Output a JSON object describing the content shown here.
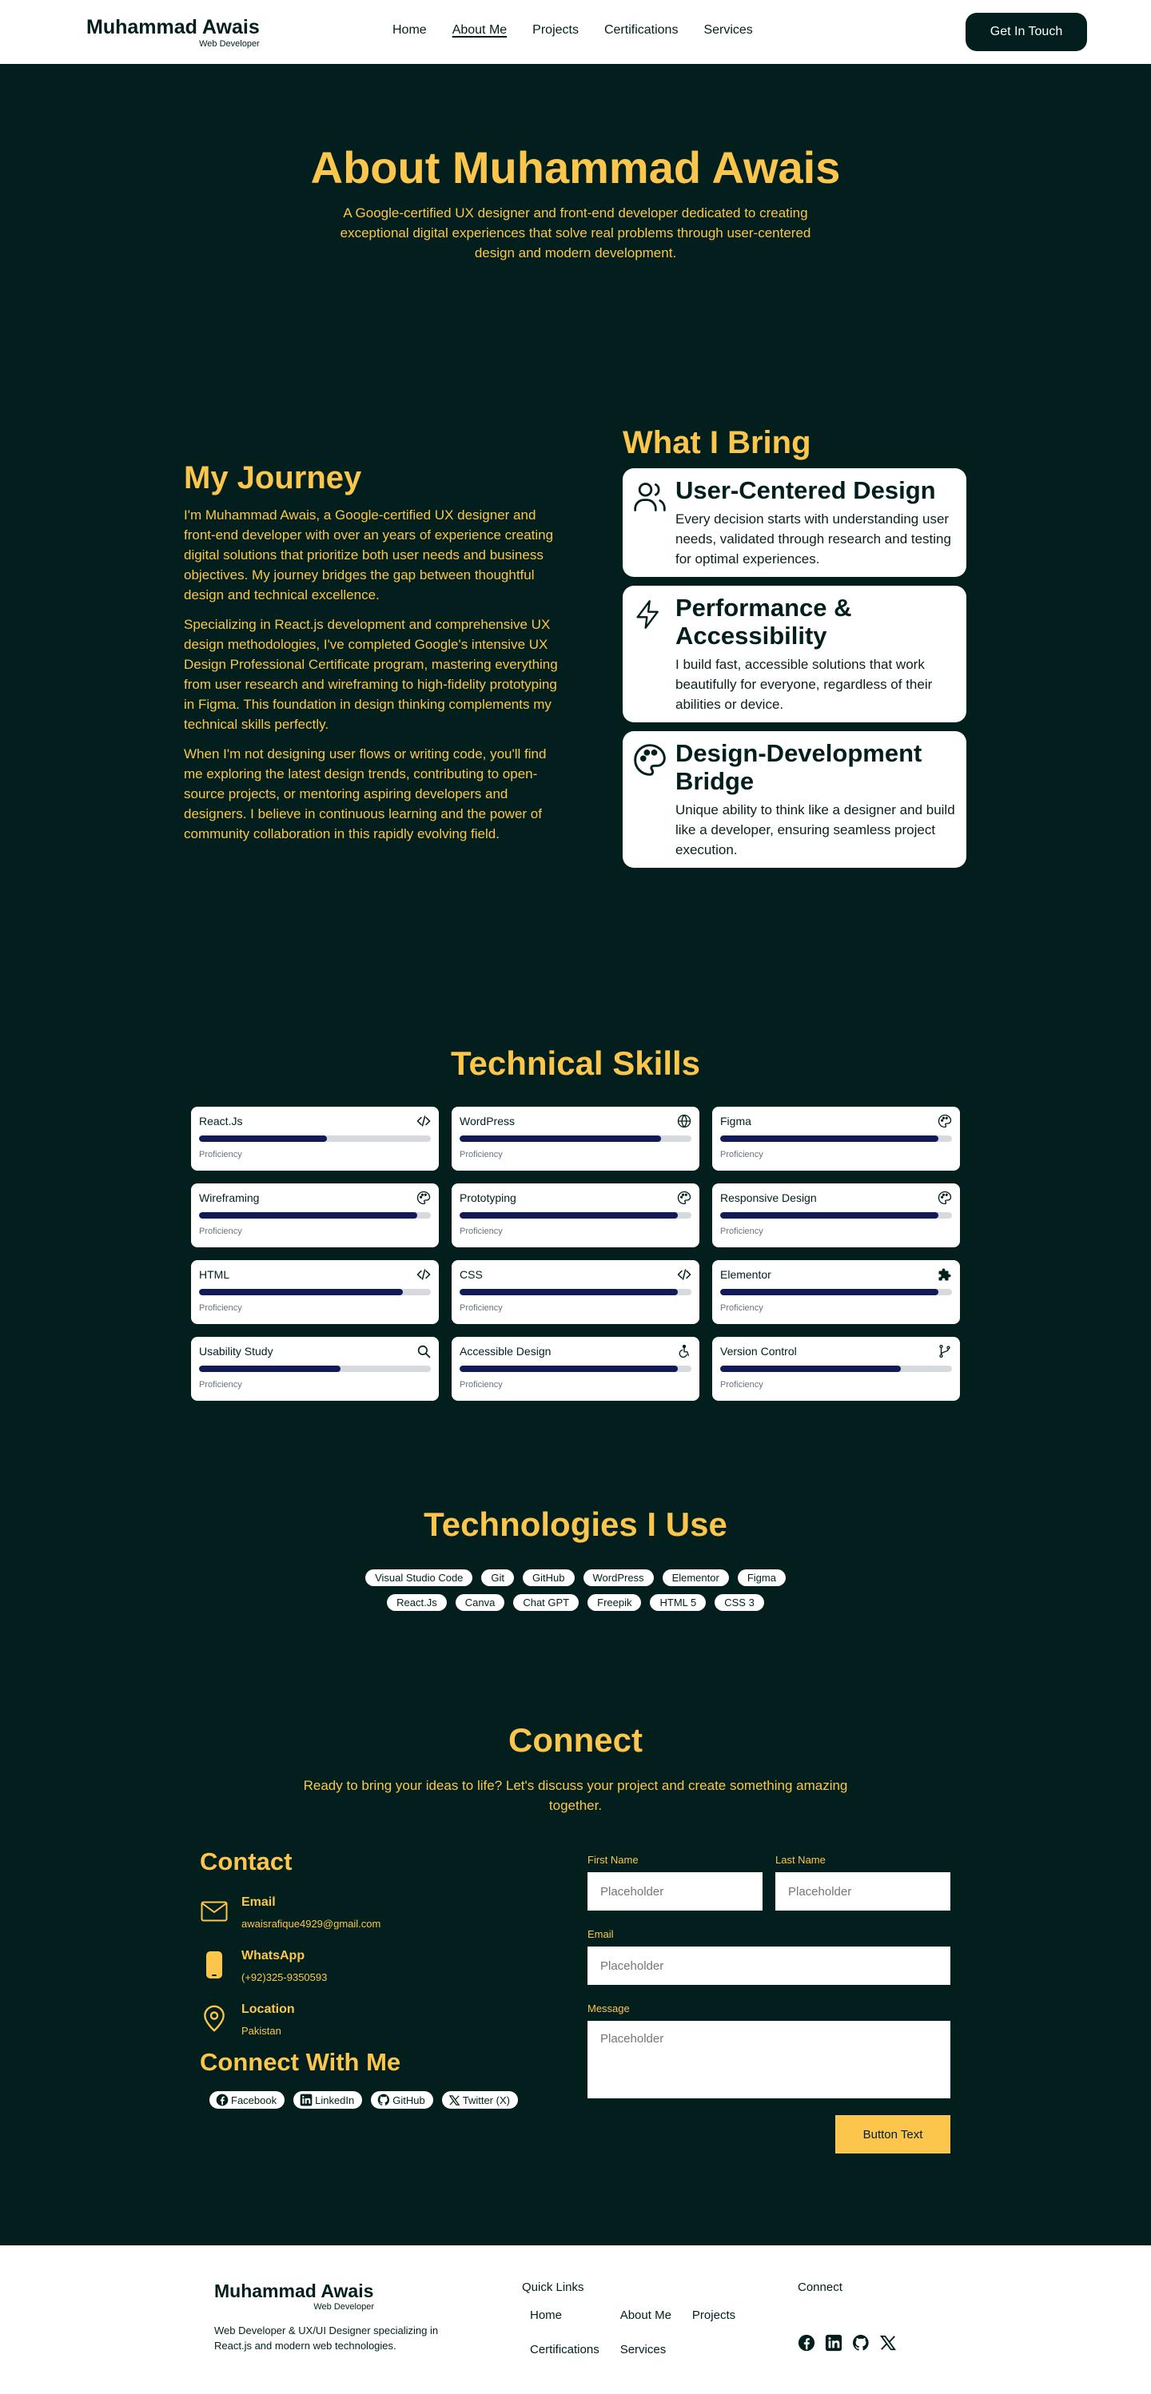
{
  "header": {
    "brand_name": "Muhammad Awais",
    "brand_sub": "Web Developer",
    "nav": [
      "Home",
      "About Me",
      "Projects",
      "Certifications",
      "Services"
    ],
    "cta": "Get In Touch"
  },
  "hero": {
    "title": "About Muhammad Awais",
    "subtitle": "A Google-certified UX designer and front-end developer dedicated to creating exceptional digital experiences that solve real problems through user-centered design and modern development."
  },
  "journey": {
    "title": "My Journey",
    "p1": "I'm Muhammad Awais, a Google-certified UX designer and front-end developer with over an years of experience creating digital solutions that prioritize both user needs and business objectives. My journey bridges the gap between thoughtful design and technical excellence.",
    "p2": "Specializing in React.js development and comprehensive UX design methodologies, I've completed Google's intensive UX Design Professional Certificate program, mastering everything from user research and wireframing to high-fidelity prototyping in Figma. This foundation in design thinking complements my technical skills perfectly.",
    "p3": "When I'm not designing user flows or writing code, you'll find me exploring the latest design trends, contributing to open-source projects, or mentoring aspiring developers and designers. I believe in continuous learning and the power of community collaboration in this rapidly evolving field."
  },
  "bring": {
    "title": "What I Bring",
    "cards": [
      {
        "title": "User-Centered Design",
        "text": "Every decision starts with understanding user needs, validated through research and testing for optimal experiences.",
        "icon": "users-icon"
      },
      {
        "title": "Performance & Accessibility",
        "text": "I build fast, accessible solutions that work beautifully for everyone, regardless of their abilities or device.",
        "icon": "lightning-icon"
      },
      {
        "title": "Design-Development Bridge",
        "text": "Unique ability to think like a designer and build like a developer, ensuring seamless project execution.",
        "icon": "palette-icon"
      }
    ]
  },
  "skills": {
    "title": "Technical Skills",
    "prof_label": "Proficiency",
    "items": [
      {
        "name": "React.Js",
        "level": 0.55,
        "icon": "code-icon"
      },
      {
        "name": "WordPress",
        "level": 0.87,
        "icon": "globe-icon"
      },
      {
        "name": "Figma",
        "level": 0.94,
        "icon": "palette-icon"
      },
      {
        "name": "Wireframing",
        "level": 0.94,
        "icon": "palette-icon"
      },
      {
        "name": "Prototyping",
        "level": 0.94,
        "icon": "palette-icon"
      },
      {
        "name": "Responsive Design",
        "level": 0.94,
        "icon": "palette-icon"
      },
      {
        "name": "HTML",
        "level": 0.88,
        "icon": "code-icon"
      },
      {
        "name": "CSS",
        "level": 0.94,
        "icon": "code-icon"
      },
      {
        "name": "Elementor",
        "level": 0.94,
        "icon": "puzzle-icon"
      },
      {
        "name": "Usability Study",
        "level": 0.61,
        "icon": "search-icon"
      },
      {
        "name": "Accessible Design",
        "level": 0.94,
        "icon": "accessibility-icon"
      },
      {
        "name": "Version Control",
        "level": 0.78,
        "icon": "branch-icon"
      }
    ]
  },
  "tech": {
    "title": "Technologies I Use",
    "items": [
      "Visual Studio Code",
      "Git",
      "GitHub",
      "WordPress",
      "Elementor",
      "Figma",
      "React.Js",
      "Canva",
      "Chat GPT",
      "Freepik",
      "HTML 5",
      "CSS 3"
    ]
  },
  "connect": {
    "title": "Connect",
    "lead": "Ready to bring your ideas to life? Let's discuss your project and create something amazing together.",
    "contact_title": "Contact",
    "email_label": "Email",
    "email_value": "awaisrafique4929@gmail.com",
    "whatsapp_label": "WhatsApp",
    "whatsapp_value": "(+92)325-9350593",
    "location_label": "Location",
    "location_value": "Pakistan",
    "connect_with": "Connect With Me",
    "socials": [
      "Facebook",
      "LinkedIn",
      "GitHub",
      "Twitter (X)"
    ]
  },
  "form": {
    "first_name": "First Name",
    "last_name": "Last Name",
    "email": "Email",
    "message": "Message",
    "placeholder": "Placeholder",
    "button": "Button Text"
  },
  "footer": {
    "brand_name": "Muhammad Awais",
    "brand_sub": "Web Developer",
    "desc": "Web Developer & UX/UI Designer specializing in React.js and modern web technologies.",
    "quick_links_title": "Quick Links",
    "quick_links": [
      "Home",
      "About Me",
      "Projects",
      "Certifications",
      "Services"
    ],
    "connect_title": "Connect"
  },
  "colors": {
    "background": "#021f1d",
    "accent": "#fbc64b",
    "bar": "#111b5b"
  }
}
